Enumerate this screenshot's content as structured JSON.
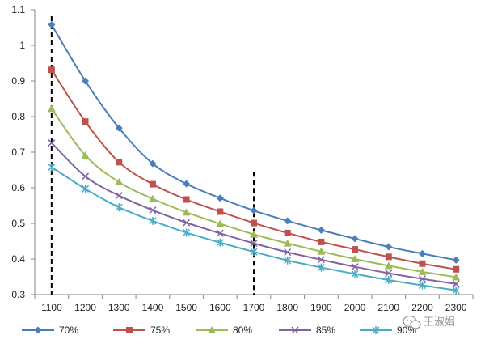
{
  "chart_data": {
    "type": "line",
    "title": "",
    "xlabel": "",
    "ylabel": "",
    "x": [
      1100,
      1200,
      1300,
      1400,
      1500,
      1600,
      1700,
      1800,
      1900,
      2000,
      2100,
      2200,
      2300
    ],
    "ylim": [
      0.3,
      1.1
    ],
    "yticks": [
      "0.3",
      "0.4",
      "0.5",
      "0.6",
      "0.7",
      "0.8",
      "0.9",
      "1",
      "1.1"
    ],
    "xticks": [
      "1100",
      "1200",
      "1300",
      "1400",
      "1500",
      "1600",
      "1700",
      "1800",
      "1900",
      "2000",
      "2100",
      "2200",
      "2300"
    ],
    "grid": false,
    "legend_position": "bottom",
    "reference_lines_x": [
      1100,
      1700
    ],
    "series": [
      {
        "name": "70%",
        "color": "#4a7ebb",
        "marker": "diamond",
        "values": [
          1.058,
          0.9,
          0.768,
          0.668,
          0.611,
          0.571,
          0.536,
          0.507,
          0.481,
          0.457,
          0.434,
          0.415,
          0.397
        ]
      },
      {
        "name": "75%",
        "color": "#c0504d",
        "marker": "square",
        "values": [
          0.931,
          0.786,
          0.672,
          0.61,
          0.567,
          0.533,
          0.501,
          0.473,
          0.448,
          0.427,
          0.406,
          0.387,
          0.371
        ]
      },
      {
        "name": "80%",
        "color": "#9bbb59",
        "marker": "triangle",
        "values": [
          0.822,
          0.691,
          0.616,
          0.569,
          0.531,
          0.499,
          0.469,
          0.444,
          0.421,
          0.4,
          0.381,
          0.364,
          0.349
        ]
      },
      {
        "name": "85%",
        "color": "#8064a2",
        "marker": "x",
        "values": [
          0.726,
          0.632,
          0.578,
          0.537,
          0.502,
          0.472,
          0.444,
          0.419,
          0.398,
          0.378,
          0.36,
          0.344,
          0.33
        ]
      },
      {
        "name": "90%",
        "color": "#4bacc6",
        "marker": "star",
        "values": [
          0.658,
          0.597,
          0.545,
          0.507,
          0.474,
          0.446,
          0.42,
          0.396,
          0.376,
          0.358,
          0.341,
          0.326,
          0.312
        ]
      }
    ]
  },
  "watermark": {
    "text": "王淑娟"
  }
}
